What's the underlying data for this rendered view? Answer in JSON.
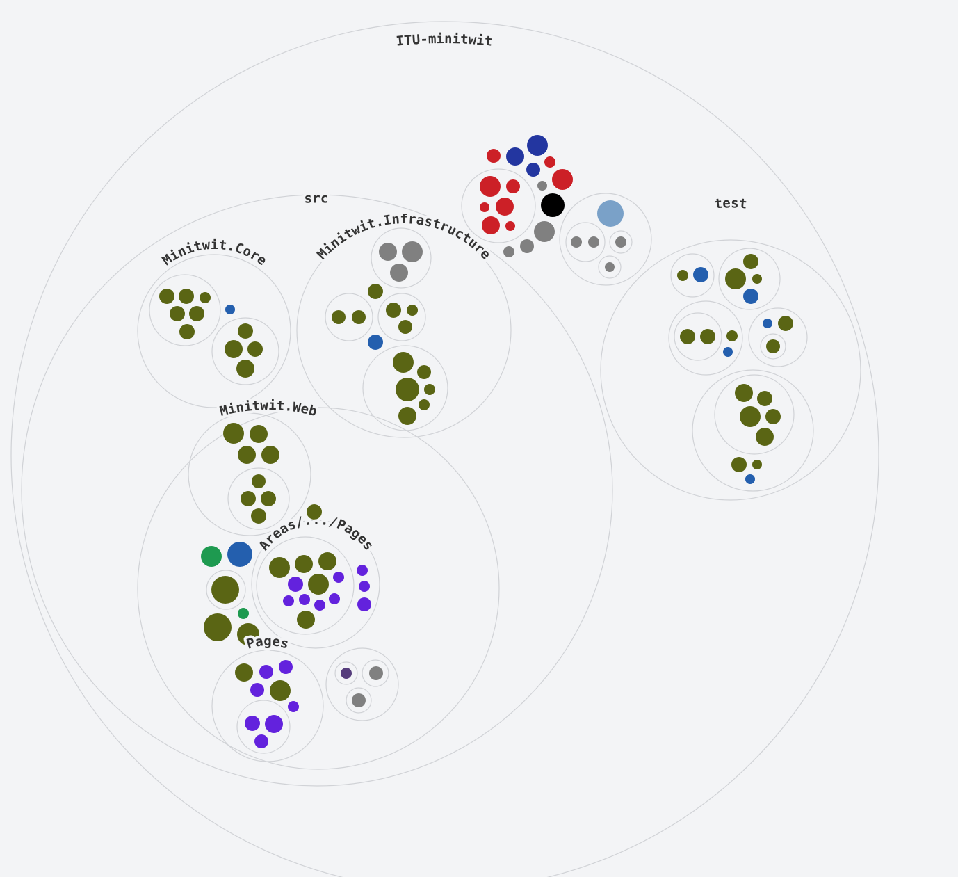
{
  "colors": {
    "background": "#f3f4f6",
    "folder_stroke": "#d0d2d6",
    "cs": "#5a6514",
    "json": "#245fae",
    "html": "#6322dd",
    "css": "#1e9a50",
    "yml": "#cc2027",
    "sh": "#2336a0",
    "other": "#808080",
    "md": "#7aa1c8",
    "black": "#000000",
    "purple_dark": "#563d7c"
  },
  "labels": {
    "root": "ITU-minitwit",
    "src": "src",
    "core": "Minitwit.Core",
    "infrastructure": "Minitwit.Infrastructure",
    "web": "Minitwit.Web",
    "areas_pages": "Areas/.../Pages",
    "pages": "Pages",
    "test": "test"
  }
}
